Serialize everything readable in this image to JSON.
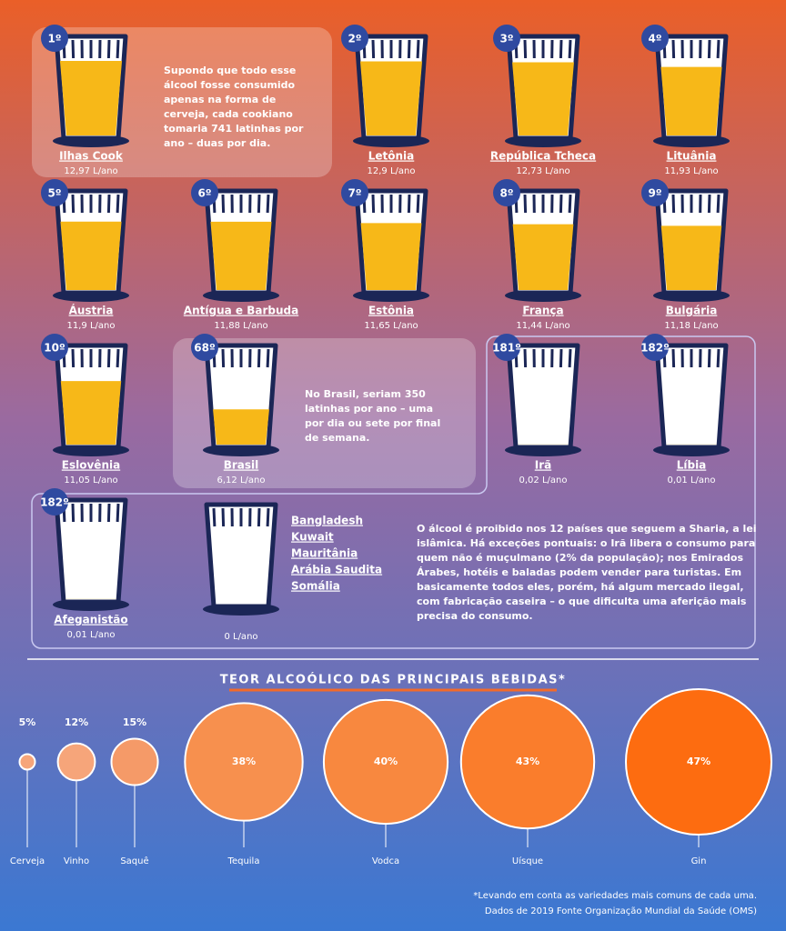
{
  "countries": [
    {
      "rank": "1º",
      "name": "Ilhas Cook",
      "value": 12.97,
      "value_label": "12,97 L/ano"
    },
    {
      "rank": "2º",
      "name": "Letônia",
      "value": 12.9,
      "value_label": "12,9 L/ano"
    },
    {
      "rank": "3º",
      "name": "República Tcheca",
      "value": 12.73,
      "value_label": "12,73 L/ano"
    },
    {
      "rank": "4º",
      "name": "Lituânia",
      "value": 11.93,
      "value_label": "11,93 L/ano"
    },
    {
      "rank": "5º",
      "name": "Áustria",
      "value": 11.9,
      "value_label": "11,9 L/ano"
    },
    {
      "rank": "6º",
      "name": "Antígua e Barbuda",
      "value": 11.88,
      "value_label": "11,88 L/ano"
    },
    {
      "rank": "7º",
      "name": "Estônia",
      "value": 11.65,
      "value_label": "11,65 L/ano"
    },
    {
      "rank": "8º",
      "name": "França",
      "value": 11.44,
      "value_label": "11,44 L/ano"
    },
    {
      "rank": "9º",
      "name": "Bulgária",
      "value": 11.18,
      "value_label": "11,18 L/ano"
    },
    {
      "rank": "10º",
      "name": "Eslovênia",
      "value": 11.05,
      "value_label": "11,05 L/ano"
    },
    {
      "rank": "68º",
      "name": "Brasil",
      "value": 6.12,
      "value_label": "6,12 L/ano"
    },
    {
      "rank": "181º",
      "name": "Irã",
      "value": 0.02,
      "value_label": "0,02 L/ano"
    },
    {
      "rank": "182º",
      "name": "Líbia",
      "value": 0.01,
      "value_label": "0,01 L/ano"
    },
    {
      "rank": "182º",
      "name": "Afeganistão",
      "value": 0.01,
      "value_label": "0,01 L/ano"
    }
  ],
  "zero_group": {
    "countries": [
      "Bangladesh",
      "Kuwait",
      "Mauritânia",
      "Arábia Saudita",
      "Somália"
    ],
    "value": 0,
    "value_label": "0 L/ano"
  },
  "cook_note": [
    "Supondo que todo esse",
    "álcool fosse consumido",
    "apenas na forma de",
    "cerveja, cada cookiano",
    "tomaria 741 latinhas por",
    "ano – duas por dia."
  ],
  "brasil_note": [
    "No Brasil, seriam 350",
    "latinhas por ano – uma",
    "por dia ou sete por final",
    "de semana."
  ],
  "ban_note": [
    "O álcool é proibido nos 12 países que seguem a Sharia, a lei",
    "islâmica. Há exceções pontuais: o Irã libera o consumo para",
    "quem não é muçulmano (2% da população); nos Emirados",
    "Árabes,  hotéis e baladas podem vender para turistas. Em",
    "basicamente todos eles, porém, há algum mercado ilegal,",
    "com fabricação caseira – o que dificulta uma aferição mais",
    "precisa do consumo."
  ],
  "drinks_title": "TEOR ALCOÓLICO DAS PRINCIPAIS BEBIDAS*",
  "drinks": [
    {
      "name": "Cerveja",
      "value": 5,
      "value_label": "5%",
      "color": "#f6a57a"
    },
    {
      "name": "Vinho",
      "value": 12,
      "value_label": "12%",
      "color": "#f6a57a"
    },
    {
      "name": "Saquê",
      "value": 15,
      "value_label": "15%",
      "color": "#f59a68"
    },
    {
      "name": "Tequila",
      "value": 38,
      "value_label": "38%",
      "color": "#f7904e"
    },
    {
      "name": "Vodca",
      "value": 40,
      "value_label": "40%",
      "color": "#f8883f"
    },
    {
      "name": "Uísque",
      "value": 43,
      "value_label": "43%",
      "color": "#fa7d2c"
    },
    {
      "name": "Gin",
      "value": 47,
      "value_label": "47%",
      "color": "#fd6c10"
    }
  ],
  "footnote": [
    "*Levando em conta as variedades mais comuns de cada uma.",
    "Dados de 2019 Fonte Organização Mundial da Saúde (OMS)"
  ]
}
